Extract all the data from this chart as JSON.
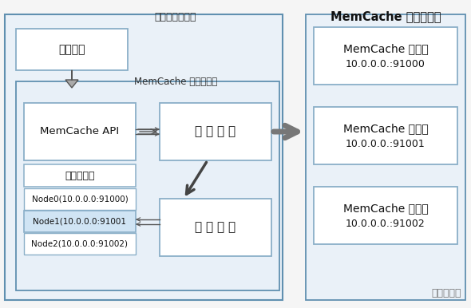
{
  "bg_color": "#f2f2f2",
  "title_right": "MemCache 服务器集群",
  "watermark": "风行手游网",
  "left_outer_label": "应用程序服务器",
  "app_box_label": "应用程序",
  "client_label": "MemCache 客户端程序",
  "api_label": "MemCache API",
  "comm_label": "通 信 模 块",
  "server_list_label": "服务器列表",
  "node0_label": "Node0(10.0.0.0:91000)",
  "node1_label": "Node1(10.0.0.0:91001",
  "node2_label": "Node2(10.0.0.0:91002)",
  "routing_label": "路 由 算 法",
  "server1_line1": "MemCache 服务器",
  "server1_line2": "10.0.0.0.:91000",
  "server2_line1": "MemCache 服务器",
  "server2_line2": "10.0.0.0.:91001",
  "server3_line1": "MemCache 服务器",
  "server3_line2": "10.0.0.0.:91002",
  "box_face": "#ffffff",
  "box_edge": "#8aafc8",
  "outer_box_edge": "#6090b0",
  "inner_box_fill": "#e8f0f8",
  "node1_fill": "#d0e4f4"
}
